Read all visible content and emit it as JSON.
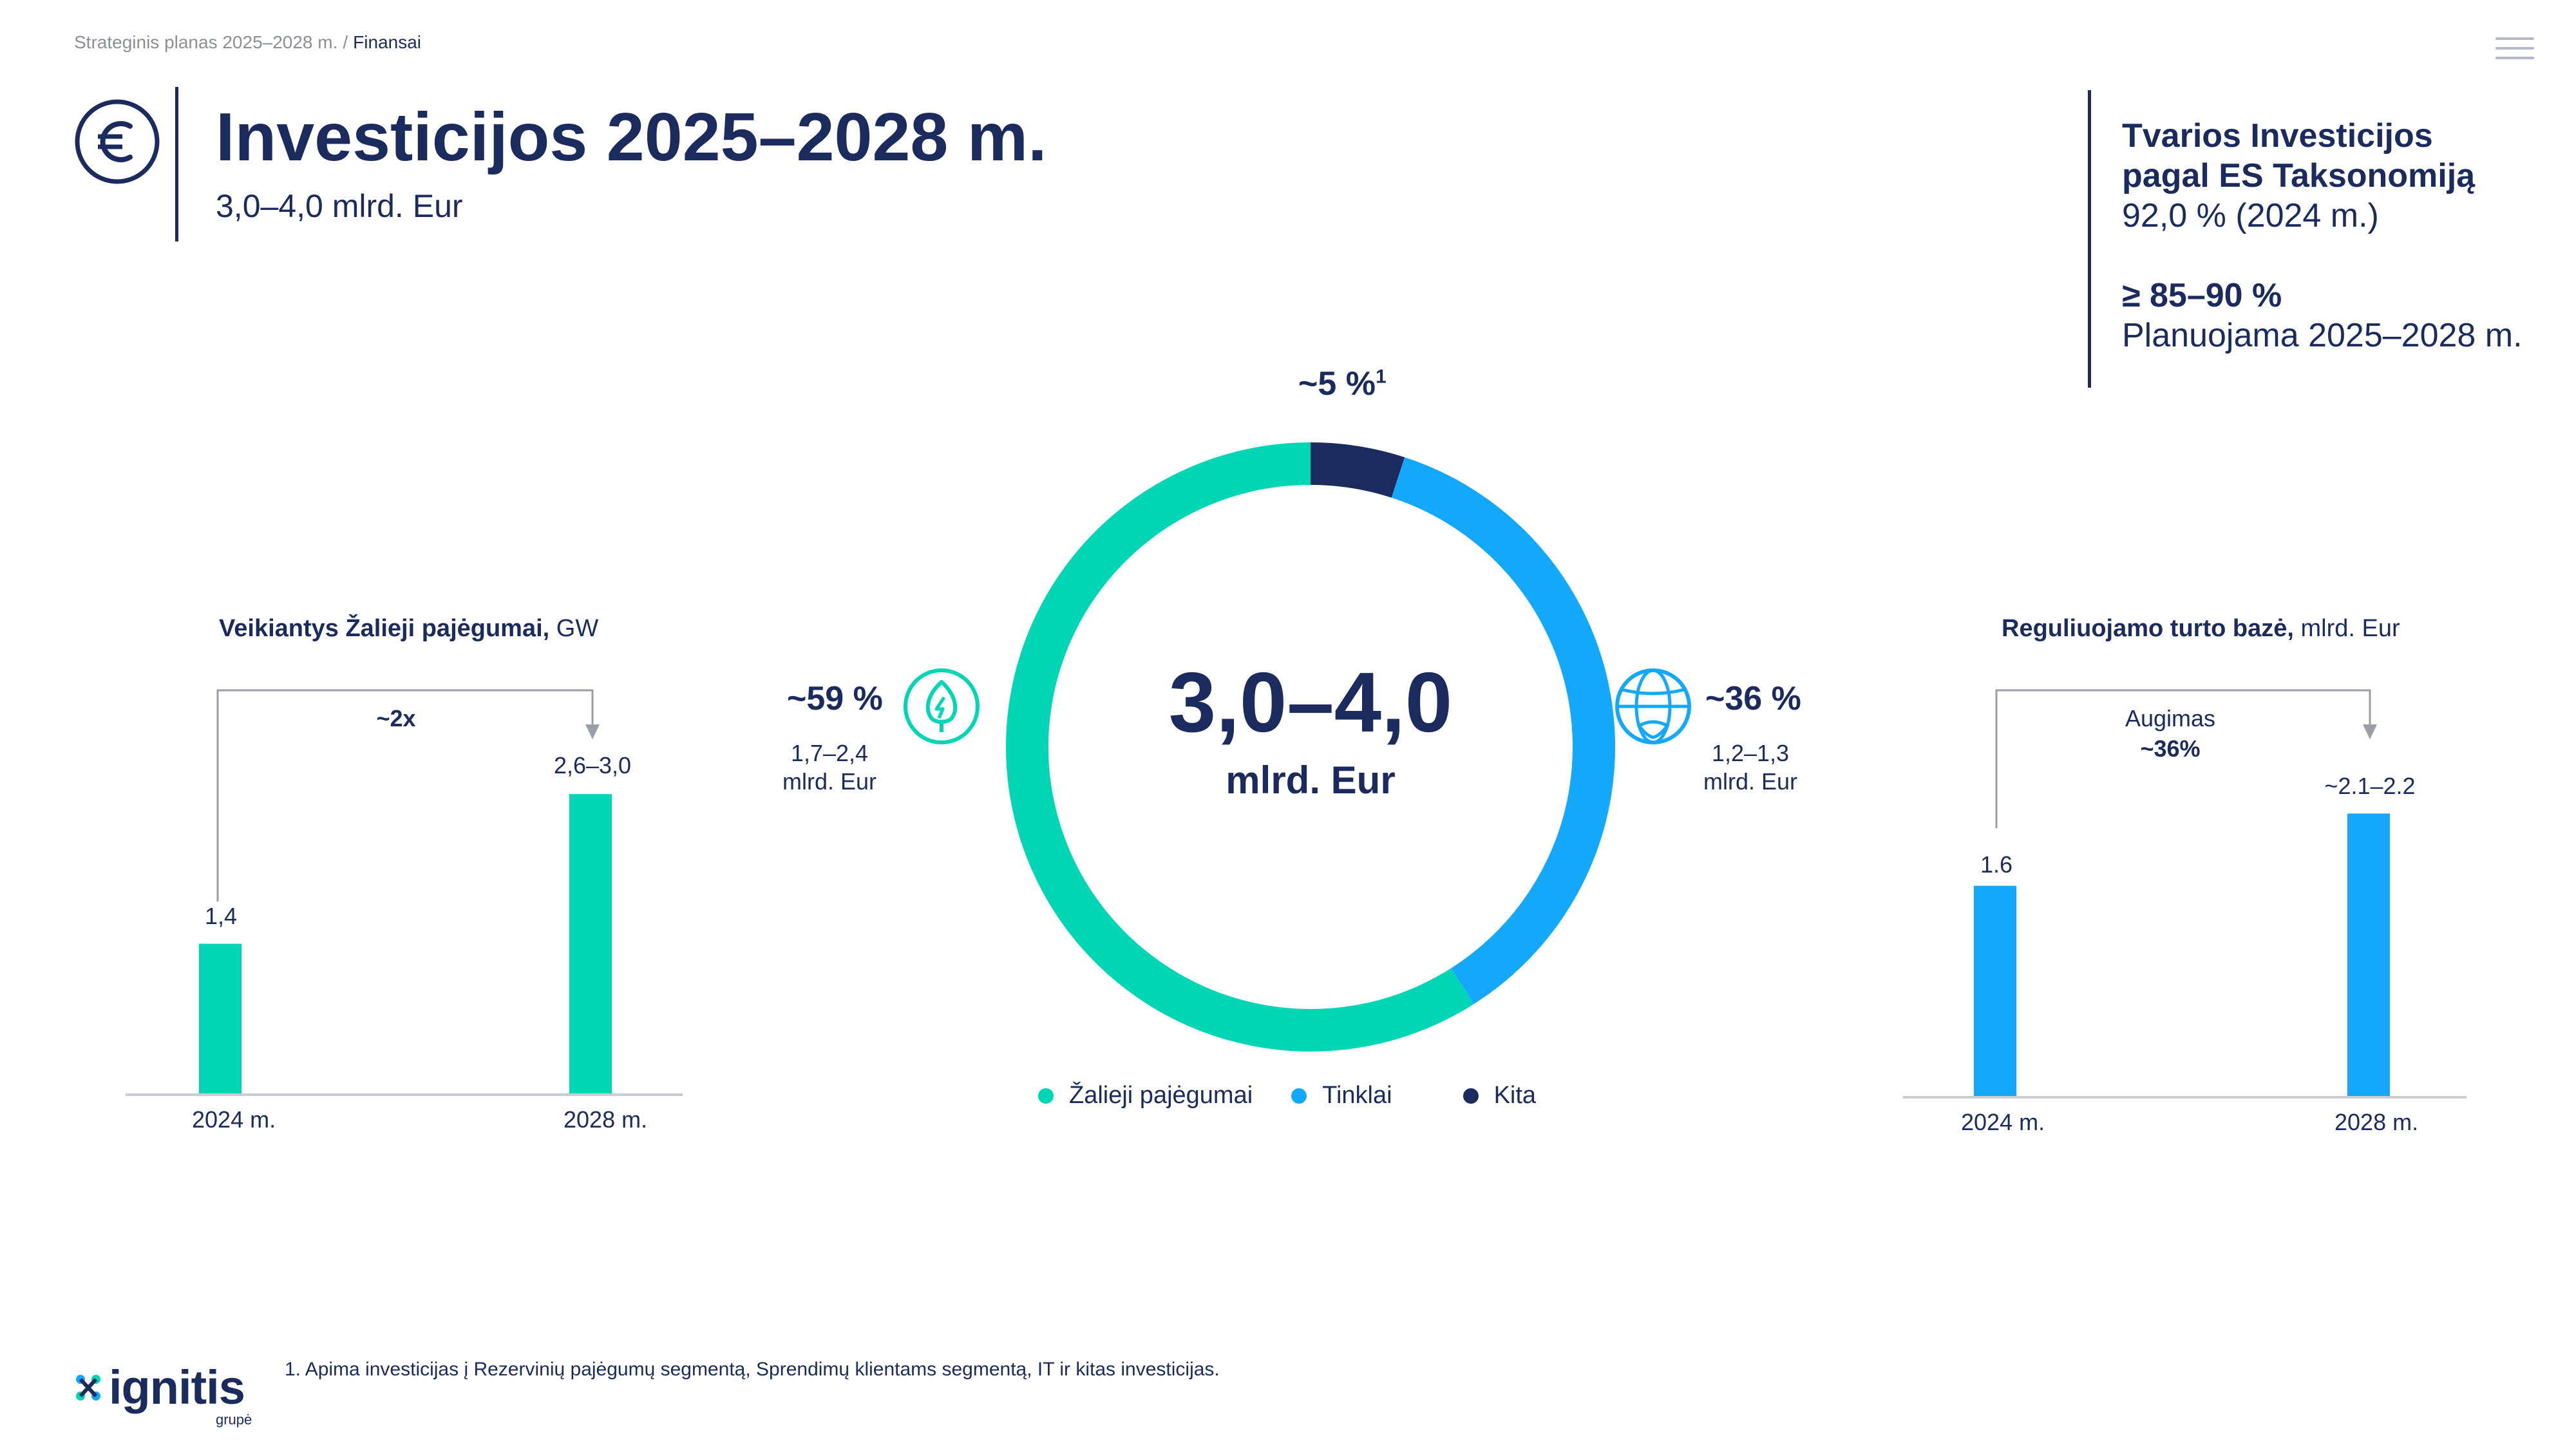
{
  "breadcrumb": {
    "parent": "Strateginis planas 2025–2028 m.",
    "separator": "/",
    "current": "Finansai"
  },
  "header": {
    "title": "Investicijos 2025–2028 m.",
    "subtitle": "3,0–4,0 mlrd. Eur",
    "icon": "euro-circle-icon"
  },
  "taxonomy": {
    "title_line1": "Tvarios Investicijos",
    "title_line2": "pagal ES Taksonomiją",
    "value_2024": "92,0 % (2024 m.)",
    "target": "≥ 85–90 %",
    "target_label": "Planuojama 2025–2028 m."
  },
  "left_chart": {
    "title_bold": "Veikiantys Žalieji pajėgumai,",
    "title_unit": "GW",
    "growth_label": "~2x",
    "bar_labels": [
      "1,4",
      "2,6–3,0"
    ],
    "categories": [
      "2024 m.",
      "2028 m."
    ]
  },
  "donut": {
    "center_value": "3,0–4,0",
    "center_unit": "mlrd. Eur",
    "other_label": "~5 %",
    "other_sup": "1",
    "green": {
      "pct": "~59 %",
      "range": "1,7–2,4",
      "unit": "mlrd. Eur",
      "icon": "leaf-energy-icon"
    },
    "grid": {
      "pct": "~36 %",
      "range": "1,2–1,3",
      "unit": "mlrd. Eur",
      "icon": "globe-icon"
    }
  },
  "legend": {
    "items": [
      "Žalieji pajėgumai",
      "Tinklai",
      "Kita"
    ]
  },
  "right_chart": {
    "title_bold": "Reguliuojamo turto bazė,",
    "title_unit": "mlrd. Eur",
    "growth_label": "Augimas",
    "growth_value": "~36%",
    "bar_labels": [
      "1.6",
      "~2.1–2.2"
    ],
    "categories": [
      "2024 m.",
      "2028 m."
    ]
  },
  "footnote": "1. Apima investicijas į Rezervinių pajėgumų segmentą, Sprendimų klientams segmentą, IT ir kitas investicijas.",
  "logo": {
    "name": "ignitis",
    "sub": "grupė"
  },
  "colors": {
    "navy": "#1b2b5e",
    "green": "#00d6b5",
    "blue": "#14a8fa",
    "dark": "#1b2b5e",
    "axis": "#c8cbd1",
    "arrow": "#9a9ea6"
  },
  "chart_data": [
    {
      "type": "bar",
      "title": "Veikiantys Žalieji pajėgumai, GW",
      "categories": [
        "2024 m.",
        "2028 m."
      ],
      "values": [
        1.4,
        2.8
      ],
      "labels": [
        "1,4",
        "2,6–3,0"
      ],
      "annotation": "~2x"
    },
    {
      "type": "pie",
      "categories": [
        "Žalieji pajėgumai",
        "Tinklai",
        "Kita"
      ],
      "values": [
        59,
        36,
        5
      ],
      "center_label": "3,0–4,0 mlrd. Eur"
    },
    {
      "type": "bar",
      "title": "Reguliuojamo turto bazė, mlrd. Eur",
      "categories": [
        "2024 m.",
        "2028 m."
      ],
      "values": [
        1.6,
        2.15
      ],
      "labels": [
        "1.6",
        "~2.1–2.2"
      ],
      "annotation": "Augimas ~36%"
    }
  ]
}
